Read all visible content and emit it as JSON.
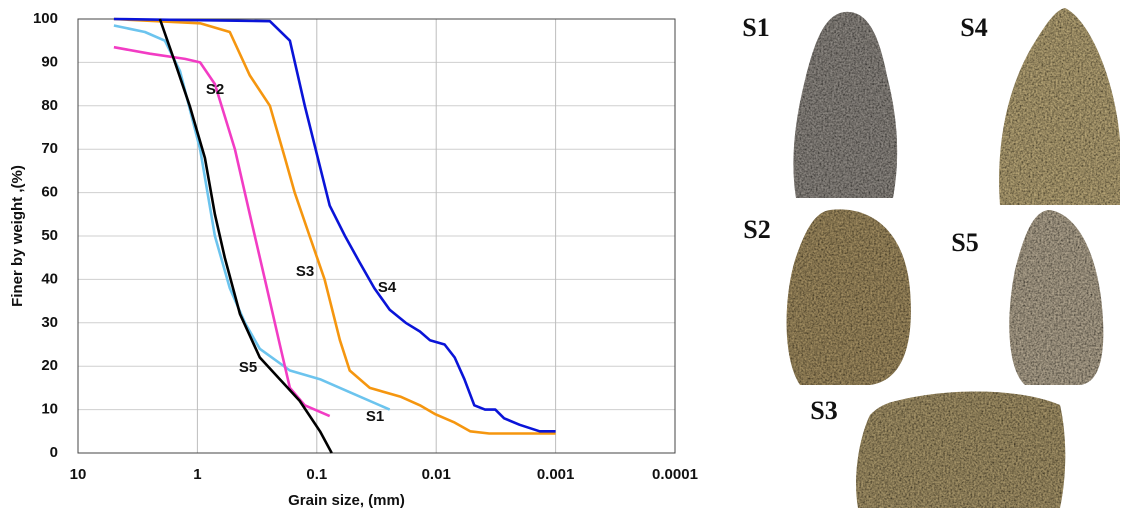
{
  "chart_data": {
    "type": "line",
    "xscale": "log",
    "grid": true,
    "x_label": "Grain size, (mm)",
    "y_label": "Finer by weight ,(%)",
    "xlim": [
      10,
      0.0001
    ],
    "xticks": [
      10,
      1,
      0.1,
      0.01,
      0.001,
      0.0001
    ],
    "ylim": [
      0,
      100
    ],
    "yticks": [
      0,
      10,
      20,
      30,
      40,
      50,
      60,
      70,
      80,
      90,
      100
    ],
    "series": [
      {
        "name": "S1",
        "color": "#6cc4ee",
        "x": [
          5,
          2.75,
          1.87,
          1.4,
          0.95,
          0.714,
          0.535,
          0.4,
          0.3,
          0.168,
          0.094,
          0.053,
          0.0245
        ],
        "values": [
          98.5,
          97,
          95,
          88,
          70,
          50,
          38,
          30,
          24,
          19,
          17,
          14,
          10
        ]
      },
      {
        "name": "S2",
        "color": "#f23cc4",
        "x": [
          5,
          2.5,
          1.27,
          0.95,
          0.714,
          0.485,
          0.364,
          0.272,
          0.204,
          0.168,
          0.126,
          0.078
        ],
        "values": [
          93.5,
          92,
          90.8,
          90,
          85,
          70,
          55,
          40,
          25,
          15,
          11,
          8.5
        ]
      },
      {
        "name": "S3",
        "color": "#f5960f",
        "x": [
          5,
          0.95,
          0.535,
          0.364,
          0.247,
          0.185,
          0.153,
          0.115,
          0.086,
          0.064,
          0.053,
          0.036,
          0.02,
          0.0137,
          0.0103,
          0.007,
          0.0052,
          0.0036,
          0.001
        ],
        "values": [
          100,
          99,
          97,
          87,
          80,
          68,
          60,
          50,
          40,
          26,
          19,
          15,
          13,
          11,
          9,
          7,
          5,
          4.5,
          4.5
        ]
      },
      {
        "name": "S4",
        "color": "#0a14d8",
        "x": [
          5,
          0.247,
          0.168,
          0.126,
          0.098,
          0.078,
          0.058,
          0.044,
          0.033,
          0.0245,
          0.018,
          0.0137,
          0.0113,
          0.0085,
          0.007,
          0.0058,
          0.0048,
          0.0039,
          0.0032,
          0.0027,
          0.002,
          0.00136,
          0.001
        ],
        "values": [
          100,
          99.5,
          95,
          80,
          68,
          57,
          50,
          44,
          38,
          33,
          30,
          28,
          26,
          25,
          22,
          17,
          11,
          10,
          10,
          8,
          6.5,
          5,
          5
        ]
      },
      {
        "name": "S5",
        "color": "#000000",
        "x": [
          2.06,
          1.54,
          1.16,
          0.865,
          0.714,
          0.589,
          0.44,
          0.3,
          0.204,
          0.139,
          0.094,
          0.075
        ],
        "values": [
          100,
          90,
          80,
          68,
          55,
          45,
          32,
          22,
          17,
          12,
          5,
          0
        ]
      }
    ]
  },
  "photos": [
    {
      "label": "S1"
    },
    {
      "label": "S4"
    },
    {
      "label": "S2"
    },
    {
      "label": "S5"
    },
    {
      "label": "S3"
    }
  ]
}
